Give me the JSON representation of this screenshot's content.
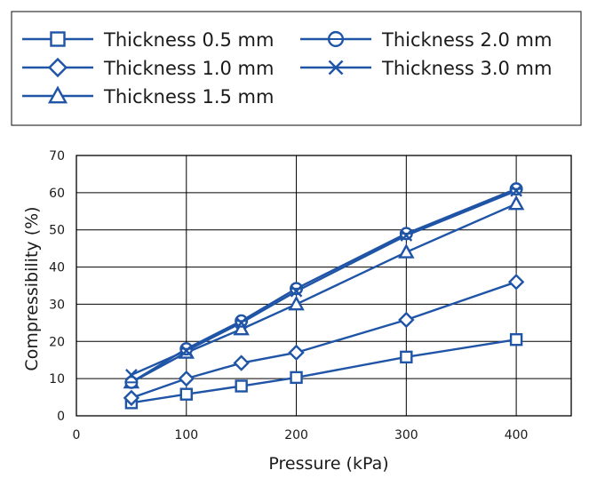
{
  "chart_data": {
    "type": "line",
    "title": "",
    "xlabel": "Pressure (kPa)",
    "ylabel": "Compressibility (%)",
    "xlim": [
      0,
      450
    ],
    "ylim": [
      0,
      70
    ],
    "xticks": [
      0,
      100,
      200,
      300,
      400
    ],
    "yticks": [
      0,
      10,
      20,
      30,
      40,
      50,
      60,
      70
    ],
    "grid": true,
    "legend_position": "top, above plot, boxed",
    "x": [
      50,
      100,
      150,
      200,
      300,
      400
    ],
    "series": [
      {
        "name": "Thickness 0.5 mm",
        "marker": "square",
        "values": [
          3.5,
          5.8,
          8.0,
          10.3,
          15.8,
          20.5
        ]
      },
      {
        "name": "Thickness 1.0 mm",
        "marker": "diamond",
        "values": [
          4.8,
          10.0,
          14.2,
          17.0,
          25.8,
          36.0
        ]
      },
      {
        "name": "Thickness 1.5 mm",
        "marker": "triangle",
        "values": [
          9.0,
          17.0,
          23.3,
          30.0,
          44.0,
          57.0
        ]
      },
      {
        "name": "Thickness 2.0 mm",
        "marker": "circle",
        "values": [
          9.0,
          18.0,
          25.5,
          34.2,
          49.0,
          61.0
        ]
      },
      {
        "name": "Thickness 3.0 mm",
        "marker": "x",
        "values": [
          11.0,
          17.5,
          25.0,
          33.5,
          48.5,
          60.5
        ]
      }
    ]
  },
  "colors": {
    "series": "#1f54a6",
    "grid": "#000000",
    "text": "#1a1a1a"
  }
}
